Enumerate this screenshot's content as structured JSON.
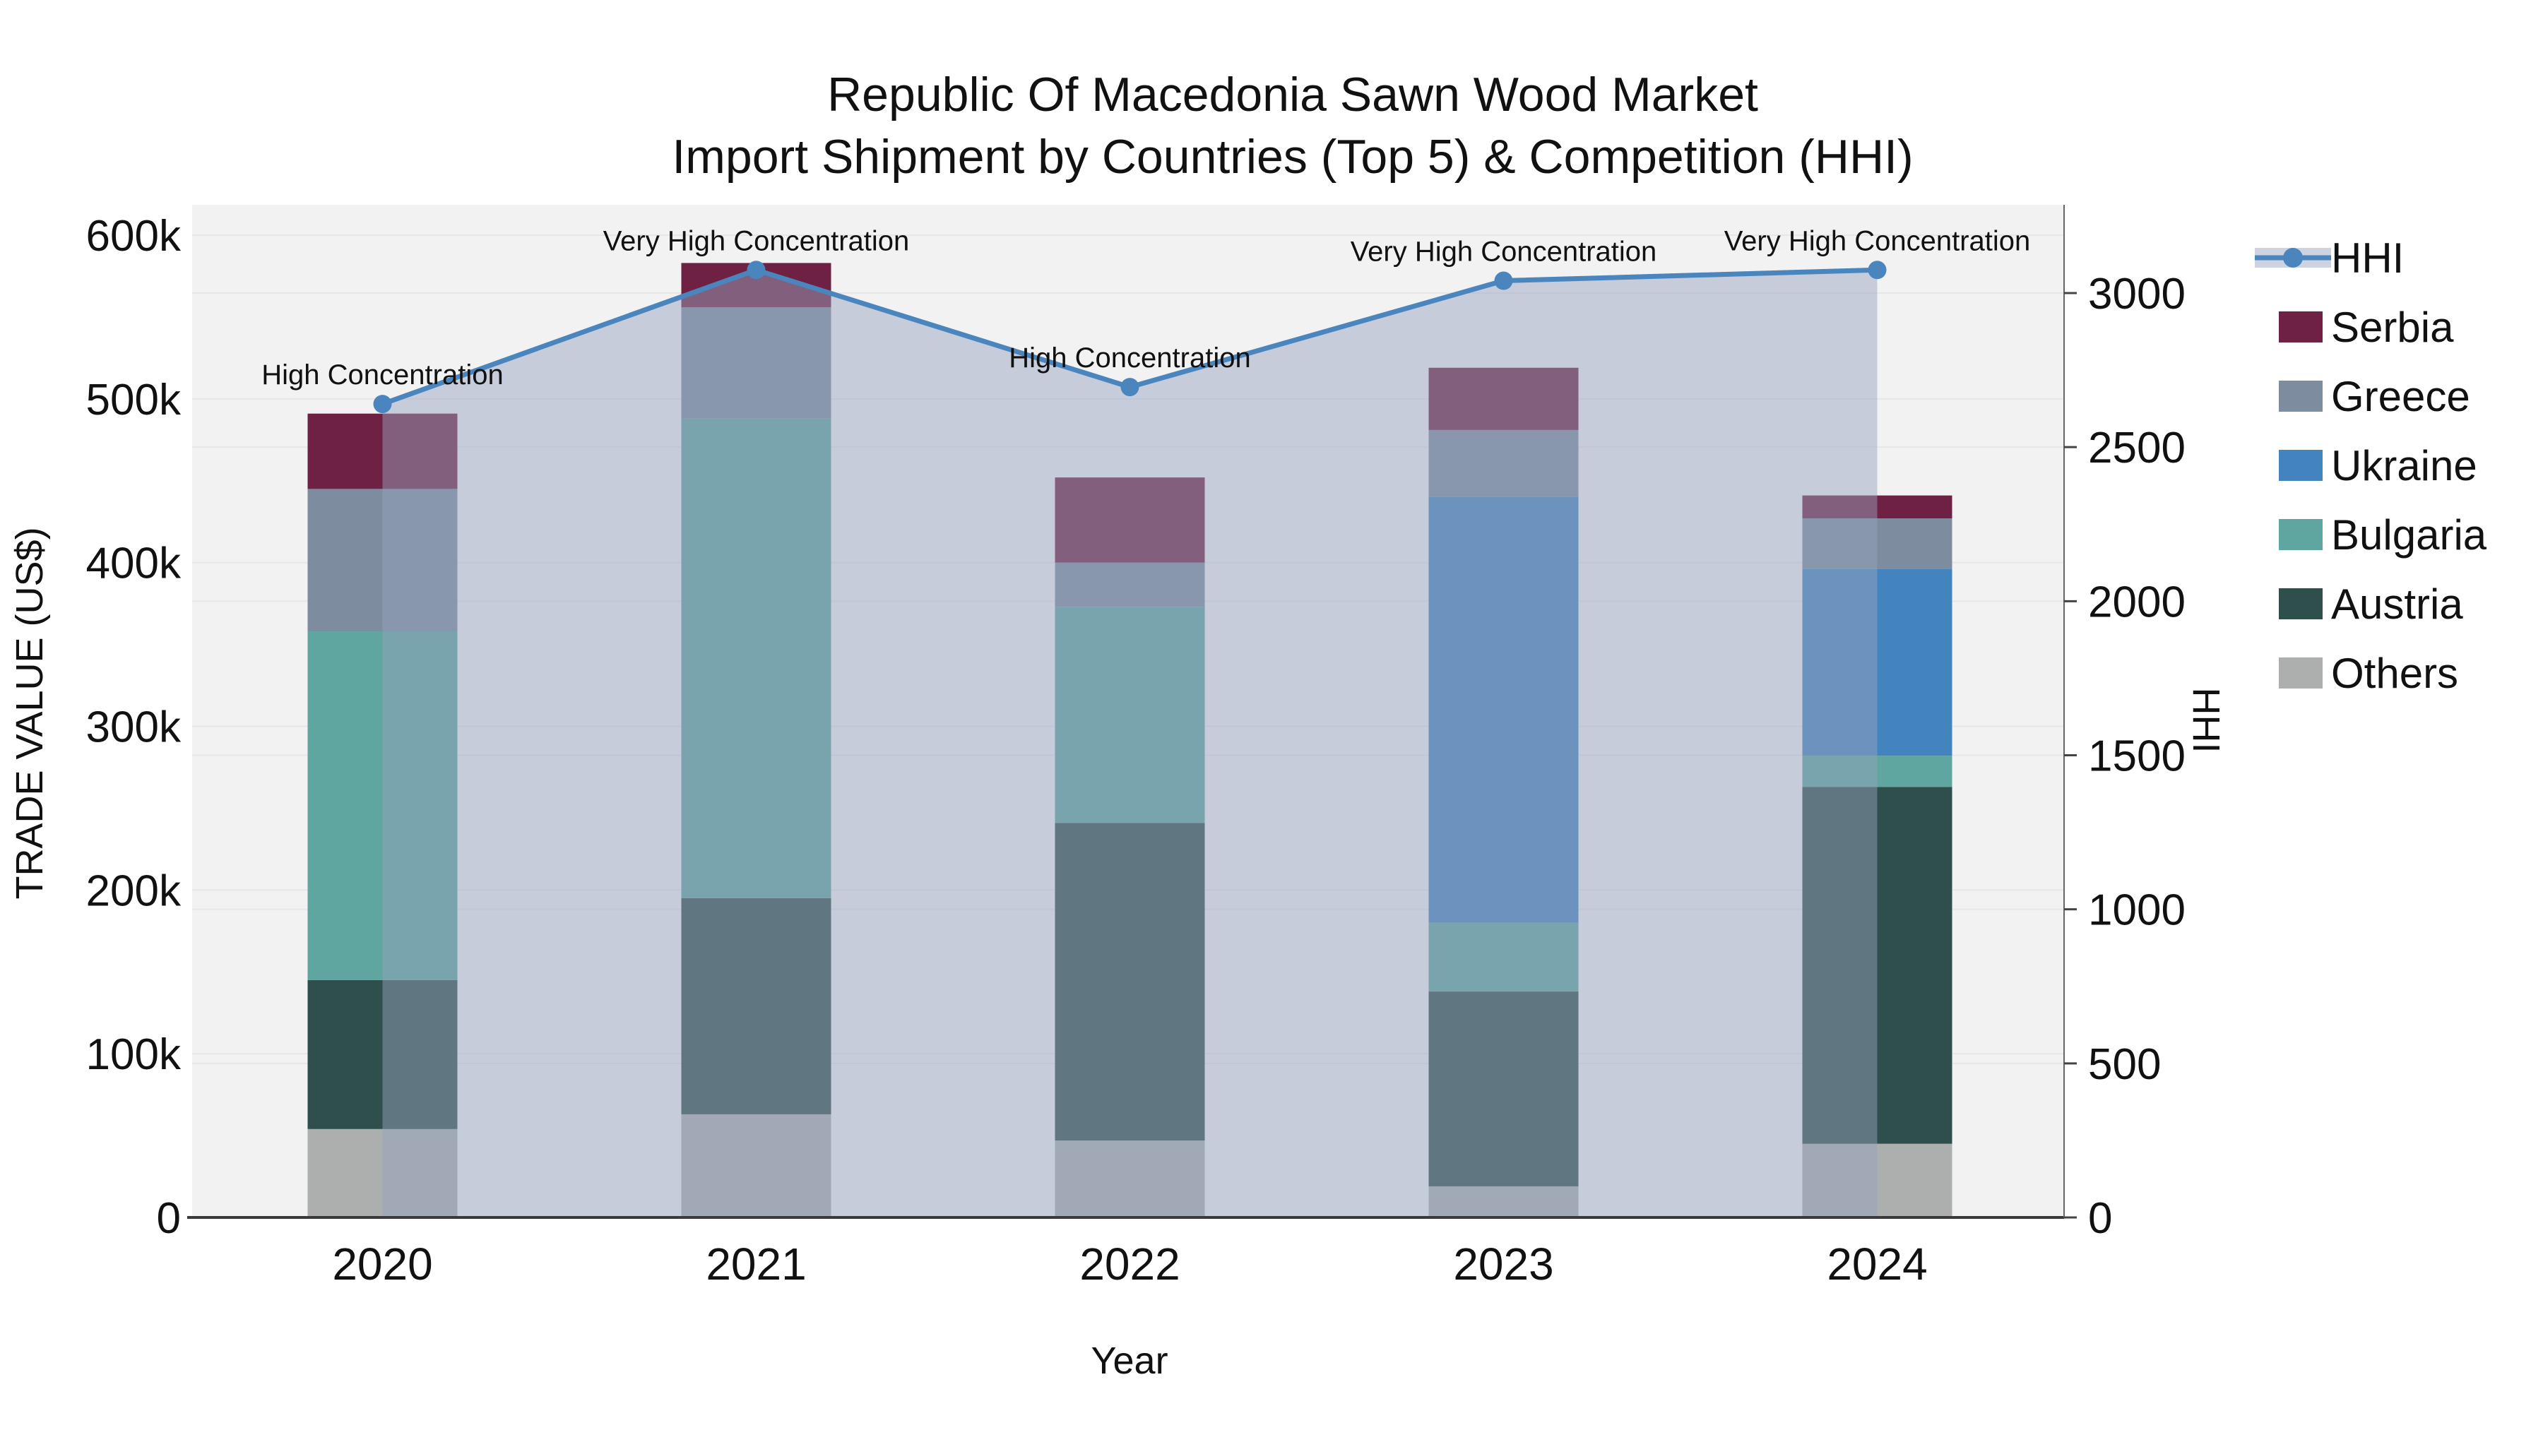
{
  "title": {
    "line1": "Republic Of Macedonia Sawn Wood Market",
    "line2": "Import Shipment by Countries (Top 5) & Competition (HHI)"
  },
  "chart_data": {
    "type": "bar",
    "subtype": "stacked-bars-with-line",
    "categories": [
      "2020",
      "2021",
      "2022",
      "2023",
      "2024"
    ],
    "series": [
      {
        "name": "Others",
        "color": "#adafae",
        "values": [
          54000,
          63000,
          47000,
          19000,
          45000
        ]
      },
      {
        "name": "Austria",
        "color": "#2e4f4b",
        "values": [
          91000,
          132000,
          194000,
          119000,
          218000
        ]
      },
      {
        "name": "Bulgaria",
        "color": "#5fa5a0",
        "values": [
          213000,
          293000,
          132000,
          42000,
          19000
        ]
      },
      {
        "name": "Ukraine",
        "color": "#4384bf",
        "values": [
          0,
          0,
          0,
          260000,
          114000
        ]
      },
      {
        "name": "Greece",
        "color": "#7d8c9e",
        "values": [
          87000,
          68000,
          27000,
          41000,
          31000
        ]
      },
      {
        "name": "Serbia",
        "color": "#6e2142",
        "values": [
          46000,
          27000,
          52000,
          38000,
          14000
        ]
      }
    ],
    "totals": [
      491000,
      583000,
      452000,
      519000,
      441000
    ],
    "hhi_series": {
      "name": "HHI",
      "line_color": "#4a86bd",
      "fill_color": "rgba(150,164,190,0.48)",
      "values": [
        2640,
        3075,
        2695,
        3040,
        3075
      ]
    },
    "annotations": [
      "High Concentration",
      "Very High Concentration",
      "High Concentration",
      "Very High Concentration",
      "Very High Concentration"
    ],
    "left_axis": {
      "label": "TRADE VALUE (US$)",
      "tick_labels": [
        "0",
        "100k",
        "200k",
        "300k",
        "400k",
        "500k",
        "600k"
      ],
      "tick_values": [
        0,
        100000,
        200000,
        300000,
        400000,
        500000,
        600000
      ],
      "max": 600000
    },
    "right_axis": {
      "label": "HHI",
      "tick_labels": [
        "0",
        "500",
        "1000",
        "1500",
        "2000",
        "2500",
        "3000"
      ],
      "tick_values": [
        0,
        500,
        1000,
        1500,
        2000,
        2500,
        3000
      ],
      "max": 3000
    },
    "x_axis": {
      "label": "Year"
    },
    "legend_entries": [
      "HHI",
      "Serbia",
      "Greece",
      "Ukraine",
      "Bulgaria",
      "Austria",
      "Others"
    ],
    "grid": true,
    "legend_position": "right"
  },
  "colors": {
    "plot_bg": "#f2f2f3",
    "figure_bg": "#ffffff",
    "gridline": "#e6e7ea",
    "bottom_spine": "#3a3a3a",
    "right_spine": "#666666",
    "text": "#111111"
  }
}
